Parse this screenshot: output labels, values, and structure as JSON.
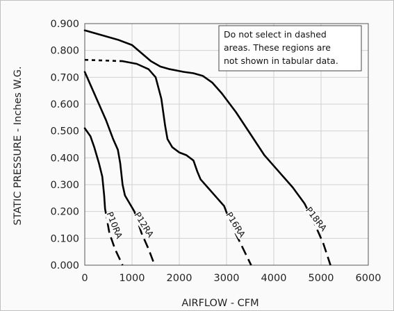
{
  "chart_data": {
    "type": "line",
    "xlabel": "AIRFLOW - CFM",
    "ylabel": "STATIC PRESSURE - Inches W.G.",
    "xlim": [
      0,
      6000
    ],
    "ylim": [
      0,
      0.9
    ],
    "x_ticks": [
      "0",
      "1000",
      "2000",
      "3000",
      "4000",
      "5000",
      "6000"
    ],
    "y_ticks": [
      "0.000",
      "0.100",
      "0.200",
      "0.300",
      "0.400",
      "0.500",
      "0.600",
      "0.700",
      "0.800",
      "0.900"
    ],
    "grid": true,
    "annotation": {
      "lines": [
        "Do not select in dashed",
        "areas. These regions are",
        "not shown in tabular data."
      ],
      "position": "top-right"
    },
    "series": [
      {
        "name": "P10RA",
        "solid": [
          [
            0,
            0.51
          ],
          [
            120,
            0.48
          ],
          [
            200,
            0.44
          ],
          [
            300,
            0.38
          ],
          [
            370,
            0.33
          ],
          [
            410,
            0.26
          ],
          [
            430,
            0.21
          ]
        ],
        "dashed": [
          [
            430,
            0.21
          ],
          [
            520,
            0.12
          ],
          [
            640,
            0.06
          ],
          [
            800,
            0.0
          ]
        ]
      },
      {
        "name": "P12RA",
        "solid": [
          [
            0,
            0.72
          ],
          [
            150,
            0.66
          ],
          [
            300,
            0.6
          ],
          [
            450,
            0.54
          ],
          [
            600,
            0.47
          ],
          [
            700,
            0.43
          ],
          [
            750,
            0.38
          ],
          [
            800,
            0.3
          ],
          [
            850,
            0.26
          ],
          [
            950,
            0.23
          ],
          [
            1050,
            0.2
          ]
        ],
        "dashed": [
          [
            1050,
            0.2
          ],
          [
            1200,
            0.12
          ],
          [
            1350,
            0.06
          ],
          [
            1480,
            0.0
          ]
        ]
      },
      {
        "name": "P16RA",
        "solid": [
          [
            800,
            0.76
          ],
          [
            1100,
            0.75
          ],
          [
            1350,
            0.73
          ],
          [
            1500,
            0.7
          ],
          [
            1620,
            0.62
          ],
          [
            1700,
            0.52
          ],
          [
            1750,
            0.47
          ],
          [
            1850,
            0.44
          ],
          [
            2000,
            0.42
          ],
          [
            2150,
            0.41
          ],
          [
            2300,
            0.39
          ],
          [
            2380,
            0.35
          ],
          [
            2450,
            0.32
          ],
          [
            2600,
            0.29
          ],
          [
            2800,
            0.25
          ],
          [
            2950,
            0.22
          ]
        ],
        "dashed_start": [
          [
            0,
            0.765
          ],
          [
            800,
            0.76
          ]
        ],
        "dashed": [
          [
            2950,
            0.22
          ],
          [
            3100,
            0.15
          ],
          [
            3300,
            0.08
          ],
          [
            3520,
            0.0
          ]
        ]
      },
      {
        "name": "P18RA",
        "solid": [
          [
            0,
            0.875
          ],
          [
            300,
            0.86
          ],
          [
            700,
            0.84
          ],
          [
            1000,
            0.82
          ],
          [
            1200,
            0.79
          ],
          [
            1400,
            0.76
          ],
          [
            1600,
            0.74
          ],
          [
            1800,
            0.73
          ],
          [
            2100,
            0.72
          ],
          [
            2300,
            0.715
          ],
          [
            2500,
            0.705
          ],
          [
            2700,
            0.68
          ],
          [
            2900,
            0.64
          ],
          [
            3200,
            0.57
          ],
          [
            3500,
            0.49
          ],
          [
            3800,
            0.41
          ],
          [
            4100,
            0.35
          ],
          [
            4400,
            0.29
          ],
          [
            4650,
            0.23
          ]
        ],
        "dashed": [
          [
            4650,
            0.23
          ],
          [
            4850,
            0.16
          ],
          [
            5050,
            0.08
          ],
          [
            5200,
            0.0
          ]
        ]
      }
    ],
    "label_positions": [
      {
        "name": "P10RA",
        "x": 570,
        "y": 0.145,
        "angle": 68
      },
      {
        "name": "P12RA",
        "x": 1200,
        "y": 0.145,
        "angle": 58
      },
      {
        "name": "P16RA",
        "x": 3140,
        "y": 0.145,
        "angle": 58
      },
      {
        "name": "P18RA",
        "x": 4850,
        "y": 0.165,
        "angle": 52
      }
    ]
  }
}
